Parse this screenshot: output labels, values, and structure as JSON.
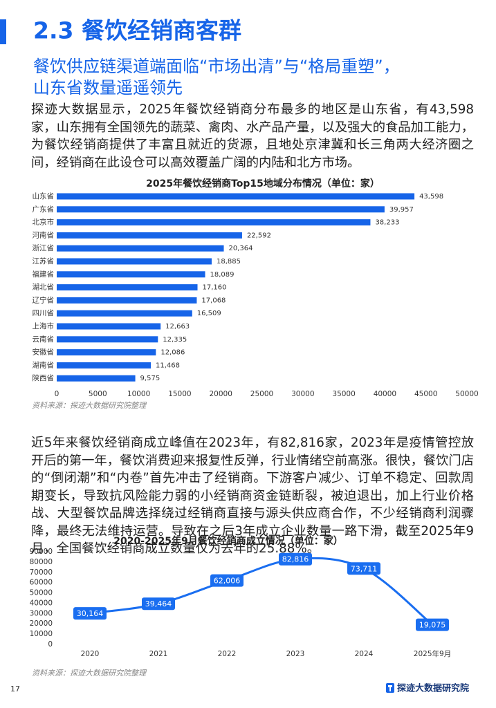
{
  "header": {
    "title": "2.3 餐饮经销商客群",
    "subtitle": [
      "餐饮供应链渠道端面临“市场出清”与“格局重塑”，",
      "山东省数量遥遥领先"
    ]
  },
  "paragraphs": [
    "探迹大数据显示，2025年餐饮经销商分布最多的地区是山东省，有43,598家，山东拥有全国领先的蔬菜、禽肉、水产品产量，以及强大的食品加工能力，为餐饮经销商提供了丰富且就近的货源，且地处京津冀和长三角两大经济圈之间，经销商在此设仓可以高效覆盖广阔的内陆和北方市场。",
    "近5年来餐饮经销商成立峰值在2023年，有82,816家，2023年是疫情管控放开后的第一年，餐饮消费迎来报复性反弹，行业情绪空前高涨。很快，餐饮门店的“倒闭潮”和“内卷”首先冲击了经销商。下游客户减少、订单不稳定、回款周期变长，导致抗风险能力弱的小经销商资金链断裂，被迫退出，加上行业价格战、大型餐饮品牌选择绕过经销商直接与源头供应商合作，不少经销商利润骤降，最终无法维持运营。导致在之后3年成立企业数量一路下滑，截至2025年9月，全国餐饮经销商成立数量仅为去年的25.88%。"
  ],
  "chart_data": [
    {
      "type": "hbar",
      "title": "2025年餐饮经销商Top15地域分布情况（单位：家）",
      "categories": [
        "山东省",
        "广东省",
        "北京市",
        "河南省",
        "浙江省",
        "江苏省",
        "福建省",
        "湖北省",
        "辽宁省",
        "四川省",
        "上海市",
        "云南省",
        "安徽省",
        "湖南省",
        "陕西省"
      ],
      "values": [
        43598,
        39957,
        38233,
        22592,
        20364,
        18885,
        18089,
        17160,
        17068,
        16509,
        12663,
        12335,
        12086,
        11468,
        9575
      ],
      "value_labels": [
        "43,598",
        "39,957",
        "38,233",
        "22,592",
        "20,364",
        "18,885",
        "18,089",
        "17,160",
        "17,068",
        "16,509",
        "12,663",
        "12,335",
        "12,086",
        "11,468",
        "9,575"
      ],
      "color": "#1664e8",
      "xlim": [
        0,
        50000
      ],
      "xticks": [
        0,
        5000,
        10000,
        15000,
        20000,
        25000,
        30000,
        35000,
        40000,
        45000,
        50000
      ],
      "grid": false,
      "source": "资料来源：探迹大数据研究院整理"
    },
    {
      "type": "line",
      "title": "2020-2025年9月餐饮经销商成立情况（单位：家）",
      "categories": [
        "2020",
        "2021",
        "2022",
        "2023",
        "2024",
        "2025年9月"
      ],
      "values": [
        30164,
        39464,
        62006,
        82816,
        73711,
        19075
      ],
      "value_labels": [
        "30,164",
        "39,464",
        "62,006",
        "82,816",
        "73,711",
        "19,075"
      ],
      "color": "#1a6ef0",
      "ylim": [
        0,
        90000
      ],
      "yticks": [
        0,
        10000,
        20000,
        30000,
        40000,
        50000,
        60000,
        70000,
        80000,
        90000
      ],
      "grid": false,
      "source": "资料来源：探迹大数据研究院整理"
    }
  ],
  "footer": {
    "page": "17",
    "brand": "探迹大数据研究院"
  }
}
